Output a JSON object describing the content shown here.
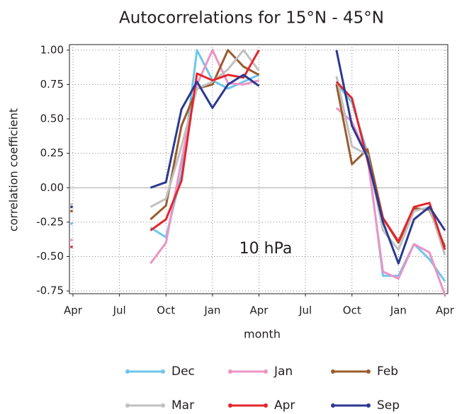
{
  "chart_data": {
    "type": "line",
    "title": "Autocorrelations for 15°N - 45°N",
    "xlabel": "month",
    "ylabel": "correlation coefficient",
    "annotation": "10 hPa",
    "categories": [
      "Apr",
      null,
      null,
      "Jul",
      null,
      null,
      "Oct",
      null,
      null,
      "Jan",
      null,
      null,
      "Apr",
      null,
      null,
      "Jul",
      null,
      null,
      "Oct",
      null,
      null,
      "Jan",
      null,
      null,
      "Apr"
    ],
    "series": [
      {
        "name": "Dec",
        "color": "#6ec6ea",
        "values": [
          -0.26,
          null,
          null,
          null,
          null,
          -0.29,
          -0.36,
          0.1,
          1.0,
          0.78,
          0.72,
          0.77,
          0.82,
          null,
          null,
          null,
          null,
          0.76,
          0.62,
          0.25,
          -0.64,
          -0.64,
          -0.41,
          -0.52,
          -0.68
        ]
      },
      {
        "name": "Jan",
        "color": "#ec93c4",
        "values": [
          -0.38,
          null,
          null,
          null,
          null,
          -0.55,
          -0.4,
          0.2,
          0.75,
          1.0,
          0.76,
          0.75,
          0.78,
          null,
          null,
          null,
          null,
          0.58,
          0.48,
          0.22,
          -0.61,
          -0.66,
          -0.41,
          -0.47,
          -0.78
        ]
      },
      {
        "name": "Feb",
        "color": "#9a5c2e",
        "values": [
          -0.17,
          null,
          null,
          null,
          null,
          -0.23,
          -0.13,
          0.45,
          0.72,
          0.75,
          1.0,
          0.88,
          0.82,
          null,
          null,
          null,
          null,
          0.75,
          0.17,
          0.28,
          -0.22,
          -0.4,
          -0.15,
          -0.16,
          -0.43
        ]
      },
      {
        "name": "Mar",
        "color": "#c0c0c0",
        "values": [
          -0.12,
          null,
          null,
          null,
          null,
          -0.14,
          -0.08,
          0.3,
          0.72,
          0.77,
          0.86,
          1.0,
          0.85,
          null,
          null,
          null,
          null,
          0.81,
          0.3,
          0.24,
          -0.31,
          -0.45,
          -0.17,
          -0.14,
          -0.49
        ]
      },
      {
        "name": "Apr",
        "color": "#e4262c",
        "values": [
          -0.43,
          null,
          null,
          null,
          null,
          -0.31,
          -0.23,
          0.05,
          0.83,
          0.78,
          0.82,
          0.8,
          1.0,
          null,
          null,
          null,
          null,
          0.77,
          0.65,
          0.2,
          -0.22,
          -0.39,
          -0.14,
          -0.11,
          -0.45
        ]
      },
      {
        "name": "Sep",
        "color": "#2b3990",
        "values": [
          -0.14,
          null,
          null,
          null,
          null,
          0.0,
          0.04,
          0.57,
          0.77,
          0.58,
          0.75,
          0.82,
          0.74,
          null,
          null,
          null,
          null,
          1.0,
          0.45,
          0.22,
          -0.25,
          -0.55,
          -0.23,
          -0.14,
          -0.31
        ]
      }
    ],
    "ylim": [
      -0.77,
      1.04
    ],
    "yticks": [
      {
        "value": -0.75,
        "label": "-0.75"
      },
      {
        "value": -0.5,
        "label": "-0.50"
      },
      {
        "value": -0.25,
        "label": "-0.25"
      },
      {
        "value": 0,
        "label": "0.00"
      },
      {
        "value": 0.25,
        "label": "0.25"
      },
      {
        "value": 0.5,
        "label": "0.50"
      },
      {
        "value": 0.75,
        "label": "0.75"
      },
      {
        "value": 1,
        "label": "1.00"
      }
    ],
    "grid": true
  }
}
